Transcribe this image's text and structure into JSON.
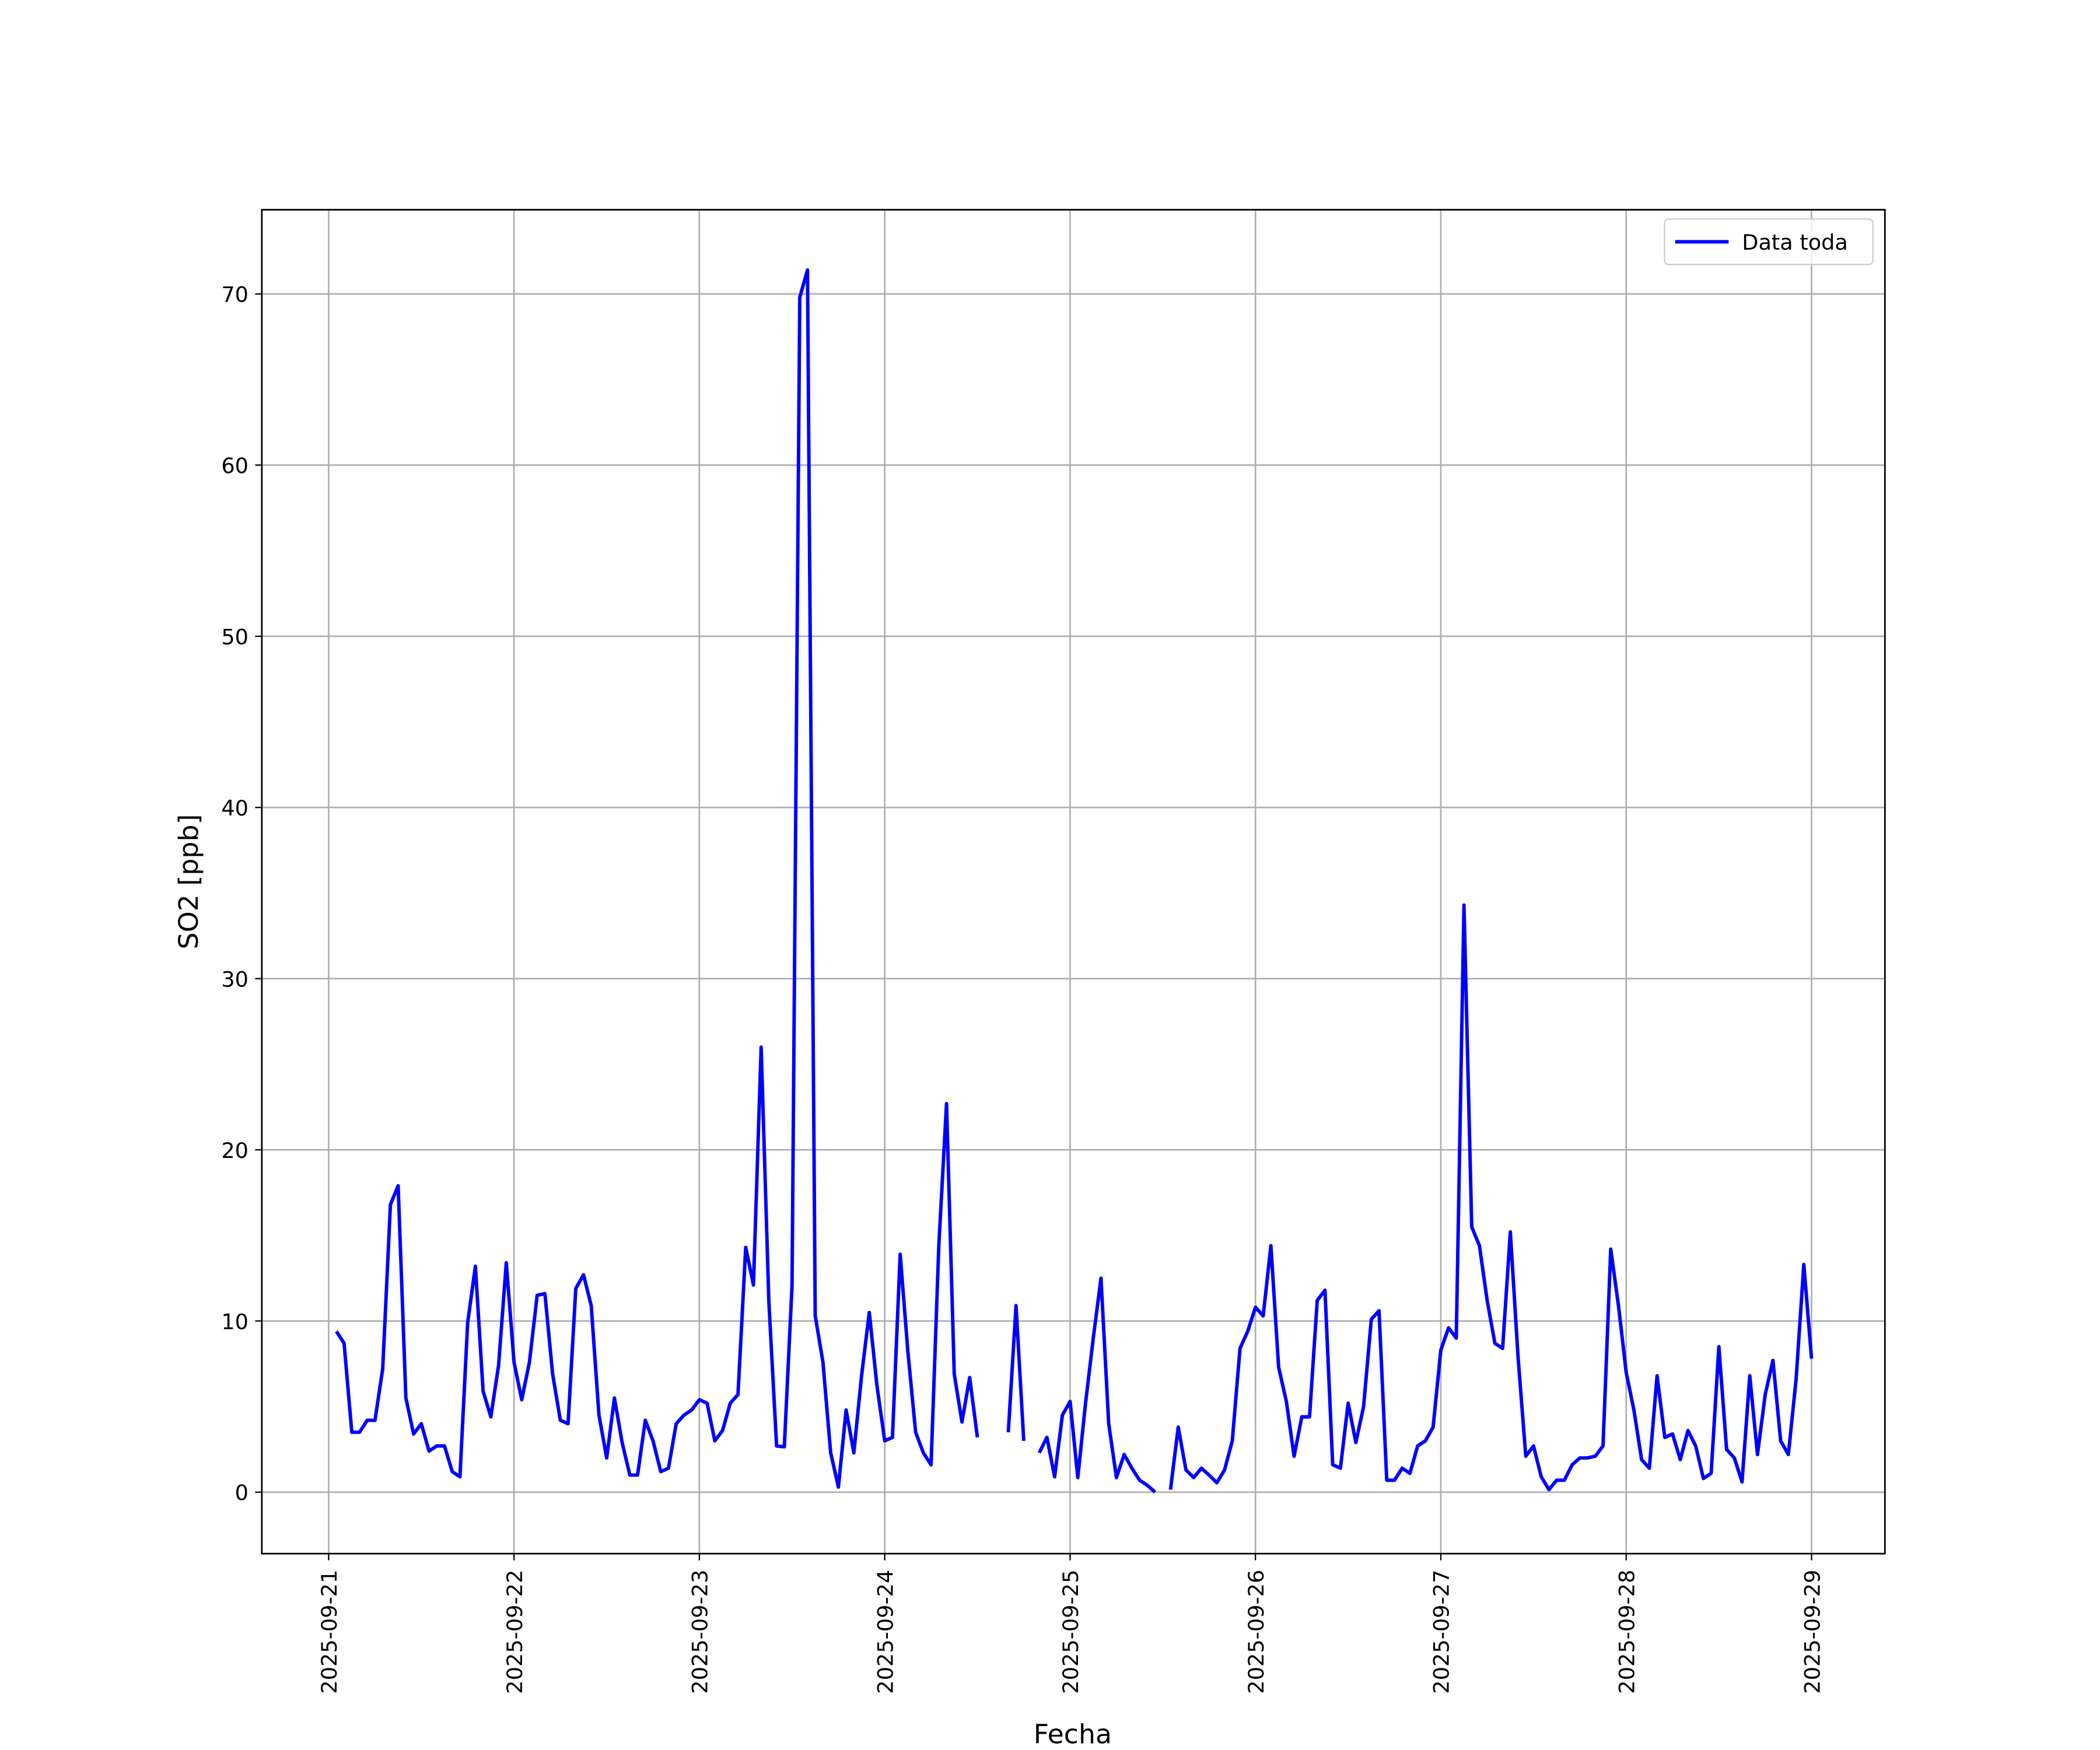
{
  "chart_data": {
    "type": "line",
    "xlabel": "Fecha",
    "ylabel": "SO2 [ppb]",
    "x": [
      1,
      2,
      3,
      4,
      5,
      6,
      7,
      8,
      9,
      10,
      11,
      12,
      13,
      14,
      15,
      16,
      17,
      18,
      19,
      20,
      21,
      22,
      23,
      24,
      25,
      26,
      27,
      28,
      29,
      30,
      31,
      32,
      33,
      34,
      35,
      36,
      37,
      38,
      39,
      40,
      41,
      42,
      43,
      44,
      45,
      46,
      47,
      48,
      49,
      50,
      51,
      52,
      53,
      54,
      55,
      56,
      57,
      58,
      59,
      60,
      61,
      62,
      63,
      64,
      65,
      66,
      67,
      68,
      69,
      70,
      71,
      72,
      73,
      74,
      75,
      76,
      77,
      78,
      79,
      80,
      81,
      82,
      83,
      84,
      85,
      86,
      87,
      88,
      89,
      90,
      91,
      92,
      93,
      94,
      95,
      96,
      97,
      98,
      99,
      100,
      101,
      102,
      103,
      104,
      105,
      106,
      107,
      108,
      109,
      110,
      111,
      112,
      113,
      114,
      115,
      116,
      117,
      118,
      119,
      120,
      121,
      122,
      123,
      124,
      125,
      126,
      127,
      128,
      129,
      130,
      131,
      132,
      133,
      134,
      135,
      136,
      137,
      138,
      139,
      140,
      141,
      142,
      143,
      144,
      145,
      146,
      147,
      148,
      149,
      150,
      151,
      152,
      153,
      154,
      155,
      156,
      157,
      158,
      159,
      160,
      161,
      162,
      163,
      164,
      165,
      166,
      167,
      168,
      169,
      170,
      171,
      172,
      173,
      174,
      175,
      176,
      177,
      178,
      179,
      180,
      181,
      182,
      183,
      184,
      185,
      186,
      187,
      188,
      189,
      190,
      191,
      192
    ],
    "series": [
      {
        "name": "Data toda",
        "color": "#0000ff",
        "values": [
          9.4,
          8.7,
          3.5,
          3.5,
          4.2,
          4.2,
          7.2,
          16.8,
          17.9,
          5.5,
          3.4,
          4.0,
          2.4,
          2.7,
          2.7,
          1.2,
          0.9,
          9.9,
          13.2,
          5.9,
          4.4,
          7.4,
          13.4,
          7.6,
          5.4,
          7.6,
          11.5,
          11.6,
          6.9,
          4.2,
          4.0,
          11.9,
          12.7,
          10.9,
          4.5,
          2.0,
          5.5,
          2.9,
          1.0,
          1.0,
          4.2,
          3.0,
          1.2,
          1.4,
          4.0,
          4.5,
          4.8,
          5.4,
          5.2,
          3.0,
          3.6,
          5.2,
          5.7,
          14.3,
          12.1,
          26.0,
          11.1,
          2.7,
          2.65,
          12.1,
          69.8,
          71.4,
          10.3,
          7.6,
          2.3,
          0.3,
          4.8,
          2.3,
          6.8,
          10.5,
          6.2,
          3.0,
          3.2,
          13.9,
          8.2,
          3.5,
          2.3,
          1.6,
          14.4,
          22.7,
          6.9,
          4.1,
          6.7,
          3.2,
          null,
          null,
          null,
          3.5,
          10.9,
          3.0,
          null,
          2.3,
          3.2,
          0.9,
          4.5,
          5.3,
          0.85,
          5.2,
          9.0,
          12.5,
          4.0,
          0.85,
          2.2,
          1.4,
          0.7,
          0.4,
          0.0,
          null,
          0.15,
          3.8,
          1.3,
          0.85,
          1.4,
          1.0,
          0.55,
          1.3,
          3.0,
          8.4,
          9.4,
          10.8,
          10.3,
          14.4,
          7.3,
          5.3,
          2.1,
          4.4,
          4.4,
          11.2,
          11.8,
          1.6,
          1.4,
          5.2,
          2.9,
          5.0,
          10.1,
          10.6,
          0.7,
          0.7,
          1.4,
          1.1,
          2.7,
          3.0,
          3.8,
          8.3,
          9.6,
          9.0,
          34.3,
          15.5,
          14.4,
          11.2,
          8.7,
          8.4,
          15.2,
          7.9,
          2.1,
          2.7,
          0.9,
          0.15,
          0.7,
          0.7,
          1.6,
          2.0,
          2.0,
          2.1,
          2.7,
          14.2,
          10.9,
          7.0,
          4.8,
          1.9,
          1.4,
          6.8,
          3.2,
          3.4,
          1.9,
          3.6,
          2.7,
          0.8,
          1.1,
          8.5,
          2.5,
          2.0,
          0.6,
          6.8,
          2.2,
          5.7,
          7.7,
          3.0,
          2.2,
          6.6,
          13.3,
          7.8
        ]
      }
    ],
    "xlim": [
      -8.65,
      201.5
    ],
    "xticks": [
      {
        "value": 0,
        "label": "2025-09-21"
      },
      {
        "value": 24,
        "label": "2025-09-22"
      },
      {
        "value": 48,
        "label": "2025-09-23"
      },
      {
        "value": 72,
        "label": "2025-09-24"
      },
      {
        "value": 96,
        "label": "2025-09-25"
      },
      {
        "value": 120,
        "label": "2025-09-26"
      },
      {
        "value": 144,
        "label": "2025-09-27"
      },
      {
        "value": 168,
        "label": "2025-09-28"
      },
      {
        "value": 192,
        "label": "2025-09-29"
      }
    ],
    "ylim": [
      -3.59,
      74.92
    ],
    "yticks": [
      0,
      10,
      20,
      30,
      40,
      50,
      60,
      70
    ],
    "grid": true,
    "legend": "upper right"
  }
}
